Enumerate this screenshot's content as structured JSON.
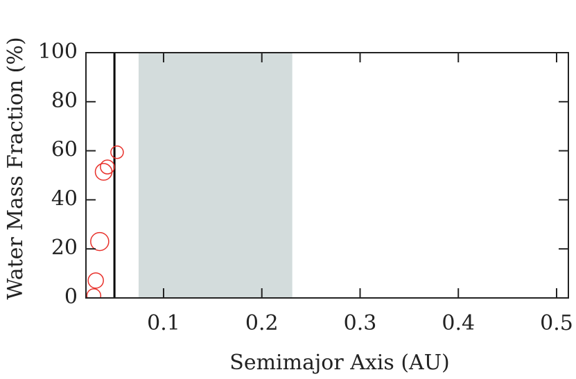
{
  "chart_data": {
    "type": "scatter",
    "xlabel": "Semimajor Axis (AU)",
    "ylabel": "Water Mass Fraction (%)",
    "xlim": [
      0.021,
      0.512
    ],
    "ylim": [
      0,
      100
    ],
    "xticks": [
      0.1,
      0.2,
      0.3,
      0.4,
      0.5
    ],
    "yticks": [
      0,
      20,
      40,
      60,
      80,
      100
    ],
    "shaded_region": [
      0.0746,
      0.231
    ],
    "shade_color": "#d3dcdc",
    "vline": 0.05,
    "vline_color": "#000000",
    "series": [
      {
        "color": "#e8302a",
        "x": [
          0.0527,
          0.0428,
          0.039,
          0.035,
          0.031,
          0.029
        ],
        "values": [
          59.4,
          53.4,
          51.4,
          23,
          7.1,
          0.9
        ],
        "sizes": [
          9,
          10,
          12,
          13,
          11,
          10
        ]
      }
    ]
  }
}
